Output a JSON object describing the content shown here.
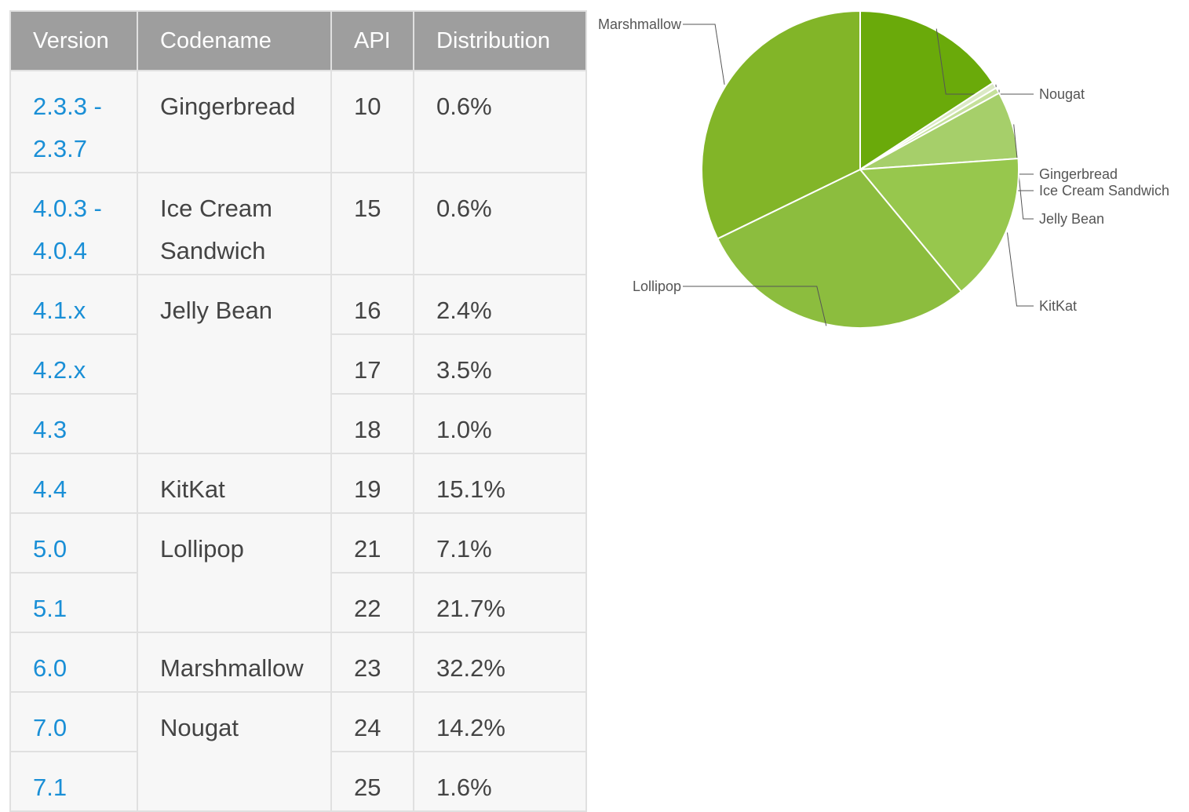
{
  "table": {
    "headers": {
      "version": "Version",
      "codename": "Codename",
      "api": "API",
      "distribution": "Distribution"
    },
    "rows": [
      {
        "version": "2.3.3 -",
        "version_2": "2.3.7",
        "codename": "Gingerbread",
        "api": "10",
        "distribution": "0.6%"
      },
      {
        "version": "4.0.3 -",
        "version_2": "4.0.4",
        "codename": "Ice Cream",
        "codename_2": "Sandwich",
        "api": "15",
        "distribution": "0.6%"
      },
      {
        "version": "4.1.x",
        "codename": "Jelly Bean",
        "api": "16",
        "distribution": "2.4%"
      },
      {
        "version": "4.2.x",
        "api": "17",
        "distribution": "3.5%"
      },
      {
        "version": "4.3",
        "api": "18",
        "distribution": "1.0%"
      },
      {
        "version": "4.4",
        "codename": "KitKat",
        "api": "19",
        "distribution": "15.1%"
      },
      {
        "version": "5.0",
        "codename": "Lollipop",
        "api": "21",
        "distribution": "7.1%"
      },
      {
        "version": "5.1",
        "api": "22",
        "distribution": "21.7%"
      },
      {
        "version": "6.0",
        "codename": "Marshmallow",
        "api": "23",
        "distribution": "32.2%"
      },
      {
        "version": "7.0",
        "codename": "Nougat",
        "api": "24",
        "distribution": "14.2%"
      },
      {
        "version": "7.1",
        "api": "25",
        "distribution": "1.6%"
      }
    ]
  },
  "chart_data": {
    "type": "pie",
    "title": "",
    "categories": [
      "Nougat",
      "Gingerbread",
      "Ice Cream Sandwich",
      "Jelly Bean",
      "KitKat",
      "Lollipop",
      "Marshmallow"
    ],
    "values": [
      15.8,
      0.6,
      0.6,
      6.9,
      15.1,
      28.8,
      32.2
    ],
    "colors": [
      "#6aaa0a",
      "#dbe9c5",
      "#c5e09a",
      "#a6cf6a",
      "#97c74d",
      "#8cbd3e",
      "#82b528"
    ],
    "start_angle_deg": 90,
    "direction": "clockwise",
    "legend": "callout labels beside slices"
  }
}
